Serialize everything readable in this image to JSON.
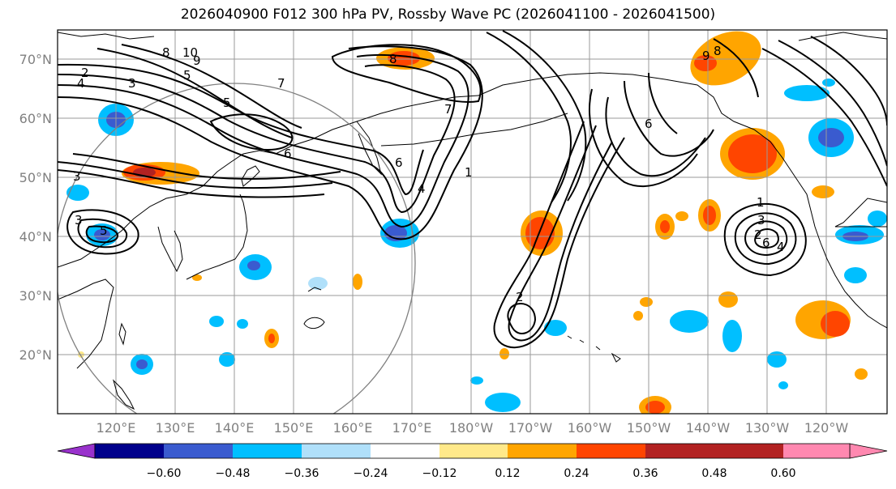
{
  "title": "2026040900 F012 300 hPa PV, Rossby Wave PC (2026041100 - 2026041500)",
  "lat_labels": [
    "70°N",
    "60°N",
    "50°N",
    "40°N",
    "30°N",
    "20°N"
  ],
  "lon_labels": [
    "120°E",
    "130°E",
    "140°E",
    "150°E",
    "160°E",
    "170°E",
    "180°W",
    "170°W",
    "160°W",
    "150°W",
    "140°W",
    "130°W",
    "120°W"
  ],
  "colorbar": {
    "ticks": [
      "−0.60",
      "−0.48",
      "−0.36",
      "−0.24",
      "−0.12",
      "0.12",
      "0.24",
      "0.36",
      "0.48",
      "0.60"
    ],
    "colors": [
      "#9932cc",
      "#00008b",
      "#3a5bcf",
      "#00bfff",
      "#b0e0fa",
      "#ffffff",
      "#ffe98a",
      "#ffa500",
      "#ff4500",
      "#b22222",
      "#ff88b0"
    ]
  },
  "contour_labels": [
    "10",
    "9",
    "8",
    "5",
    "4",
    "3",
    "2",
    "7",
    "6",
    "5",
    "6",
    "8",
    "4",
    "7",
    "1",
    "9",
    "8",
    "6",
    "1",
    "3",
    "2",
    "6",
    "4",
    "5",
    "3",
    "2",
    "3"
  ]
}
